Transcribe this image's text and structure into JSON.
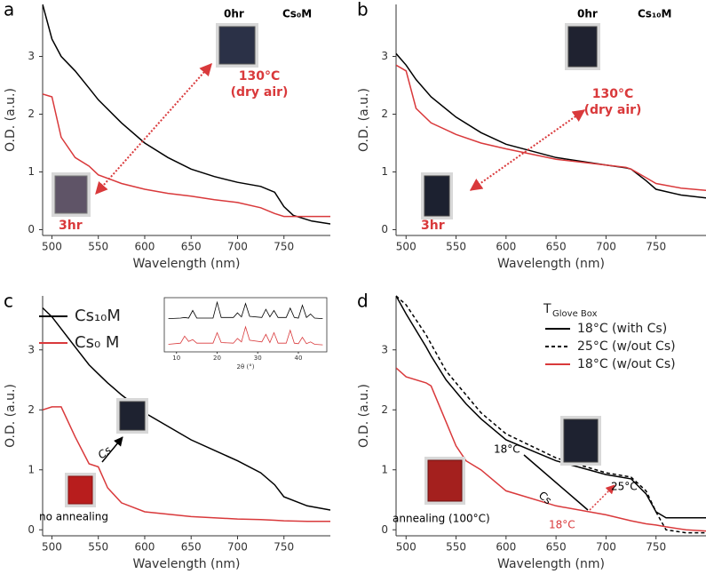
{
  "chart_data": [
    {
      "type": "line",
      "label": "a",
      "xlabel": "Wavelength (nm)",
      "ylabel": "O.D. (a.u.)",
      "xlim": [
        490,
        800
      ],
      "xticks": [
        500,
        550,
        600,
        650,
        700,
        750
      ],
      "ylim": [
        -0.1,
        3.9
      ],
      "yticks": [
        0,
        1,
        2,
        3
      ],
      "x": [
        490,
        500,
        510,
        525,
        540,
        550,
        575,
        600,
        625,
        650,
        675,
        700,
        725,
        740,
        750,
        760,
        780,
        800
      ],
      "series": [
        {
          "color": "#000000",
          "values": [
            3.9,
            3.3,
            3.0,
            2.75,
            2.45,
            2.25,
            1.85,
            1.5,
            1.25,
            1.05,
            0.92,
            0.82,
            0.75,
            0.65,
            0.4,
            0.25,
            0.15,
            0.1
          ]
        },
        {
          "color": "#d9393b",
          "values": [
            2.35,
            2.3,
            1.6,
            1.25,
            1.1,
            0.95,
            0.8,
            0.7,
            0.63,
            0.58,
            0.52,
            0.47,
            0.38,
            0.28,
            0.23,
            0.23,
            0.23,
            0.23
          ]
        }
      ],
      "annotations": [
        "0hr",
        "Cs₀M",
        "130°C",
        "(dry air)",
        "3hr"
      ]
    },
    {
      "type": "line",
      "label": "b",
      "xlabel": "Wavelength (nm)",
      "ylabel": "O.D. (a.u.)",
      "xlim": [
        490,
        800
      ],
      "xticks": [
        500,
        550,
        600,
        650,
        700,
        750
      ],
      "ylim": [
        -0.1,
        3.9
      ],
      "yticks": [
        0,
        1,
        2,
        3
      ],
      "x": [
        490,
        500,
        510,
        525,
        550,
        575,
        600,
        650,
        700,
        720,
        725,
        740,
        750,
        775,
        800
      ],
      "series": [
        {
          "color": "#000000",
          "values": [
            3.05,
            2.85,
            2.6,
            2.3,
            1.95,
            1.68,
            1.48,
            1.25,
            1.12,
            1.07,
            1.05,
            0.85,
            0.7,
            0.6,
            0.55
          ]
        },
        {
          "color": "#d9393b",
          "values": [
            2.85,
            2.75,
            2.1,
            1.85,
            1.65,
            1.5,
            1.4,
            1.22,
            1.12,
            1.08,
            1.05,
            0.9,
            0.8,
            0.72,
            0.68
          ]
        }
      ],
      "annotations": [
        "0hr",
        "Cs₁₀M",
        "130°C",
        "(dry air)",
        "3hr"
      ]
    },
    {
      "type": "line",
      "label": "c",
      "xlabel": "Wavelength (nm)",
      "ylabel": "O.D. (a.u.)",
      "xlim": [
        490,
        800
      ],
      "xticks": [
        500,
        550,
        600,
        650,
        700,
        750
      ],
      "ylim": [
        -0.1,
        3.9
      ],
      "yticks": [
        0,
        1,
        2,
        3
      ],
      "x": [
        490,
        500,
        510,
        525,
        540,
        550,
        560,
        575,
        600,
        650,
        700,
        725,
        740,
        750,
        775,
        800
      ],
      "series": [
        {
          "name": "Cs₁₀M",
          "color": "#000000",
          "values": [
            3.7,
            3.55,
            3.35,
            3.05,
            2.75,
            2.6,
            2.45,
            2.25,
            1.95,
            1.5,
            1.15,
            0.95,
            0.75,
            0.55,
            0.4,
            0.33
          ]
        },
        {
          "name": "Cs₀ M",
          "color": "#d9393b",
          "values": [
            2.0,
            2.05,
            2.05,
            1.55,
            1.1,
            1.05,
            0.7,
            0.45,
            0.3,
            0.22,
            0.18,
            0.17,
            0.16,
            0.15,
            0.14,
            0.14
          ]
        }
      ],
      "annotations": [
        "Cs",
        "no annealing"
      ]
    },
    {
      "type": "line",
      "xlabel": "2θ (°)",
      "xlim": [
        7,
        47
      ],
      "xticks": [
        10,
        20,
        30,
        40
      ],
      "ylim": [
        0.15,
        1.08
      ],
      "x": [
        8,
        11,
        12,
        13,
        14,
        15,
        19,
        20,
        21,
        24,
        25,
        26,
        27,
        28,
        31,
        32,
        33,
        34,
        35,
        37,
        38,
        39,
        40,
        41,
        42,
        43,
        44,
        46
      ],
      "series": [
        {
          "color": "#000000",
          "values": [
            0.72,
            0.73,
            0.74,
            0.73,
            0.86,
            0.73,
            0.73,
            1.0,
            0.74,
            0.74,
            0.82,
            0.75,
            0.98,
            0.76,
            0.74,
            0.88,
            0.75,
            0.86,
            0.74,
            0.74,
            0.9,
            0.74,
            0.73,
            0.95,
            0.74,
            0.8,
            0.73,
            0.72
          ]
        },
        {
          "color": "#d9393b",
          "values": [
            0.28,
            0.3,
            0.42,
            0.33,
            0.36,
            0.3,
            0.3,
            0.48,
            0.31,
            0.3,
            0.38,
            0.32,
            0.58,
            0.35,
            0.32,
            0.45,
            0.31,
            0.48,
            0.3,
            0.3,
            0.52,
            0.3,
            0.29,
            0.4,
            0.29,
            0.32,
            0.28,
            0.27
          ]
        }
      ]
    },
    {
      "type": "line",
      "label": "d",
      "xlabel": "Wavelength (nm)",
      "ylabel": "O.D. (a.u.)",
      "xlim": [
        490,
        800
      ],
      "xticks": [
        500,
        550,
        600,
        650,
        700,
        750
      ],
      "ylim": [
        -0.1,
        3.9
      ],
      "yticks": [
        0,
        1,
        2,
        3
      ],
      "legend_title": "T",
      "legend_title_sub": "Glove Box",
      "x": [
        490,
        500,
        520,
        525,
        540,
        550,
        560,
        575,
        600,
        650,
        700,
        725,
        740,
        750,
        760,
        780,
        800
      ],
      "series": [
        {
          "name": "18°C (with Cs)",
          "color": "#000000",
          "style": "solid",
          "values": [
            3.9,
            3.6,
            3.05,
            2.9,
            2.5,
            2.3,
            2.1,
            1.85,
            1.5,
            1.15,
            0.92,
            0.85,
            0.6,
            0.3,
            0.2,
            0.2,
            0.2
          ]
        },
        {
          "name": "25°C (w/out Cs)",
          "color": "#000000",
          "style": "dashed",
          "values": [
            3.9,
            3.75,
            3.25,
            3.1,
            2.65,
            2.45,
            2.25,
            1.95,
            1.6,
            1.2,
            0.95,
            0.88,
            0.65,
            0.3,
            0.0,
            -0.05,
            -0.05
          ]
        },
        {
          "name": "18°C (w/out Cs)",
          "color": "#d9393b",
          "style": "solid",
          "values": [
            2.7,
            2.55,
            2.45,
            2.4,
            1.8,
            1.4,
            1.15,
            1.0,
            0.65,
            0.4,
            0.25,
            0.15,
            0.1,
            0.08,
            0.05,
            0.0,
            -0.02
          ]
        }
      ],
      "annotations": [
        "18°C",
        "Cs",
        "18°C",
        "25°C",
        "annealing (100°C)"
      ]
    }
  ]
}
